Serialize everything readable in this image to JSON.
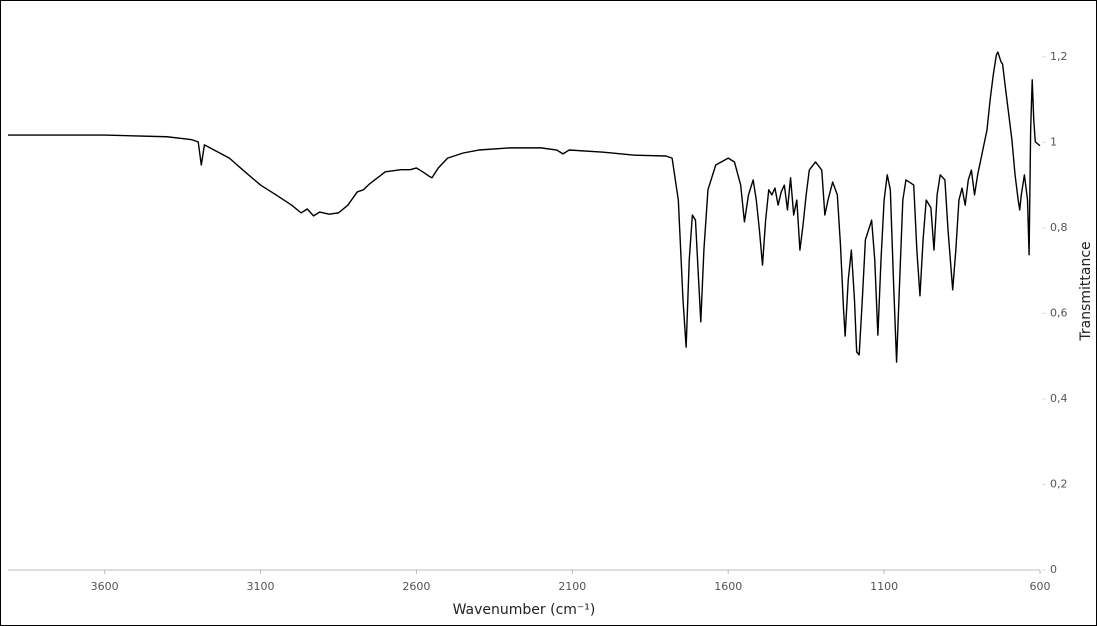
{
  "chart_data": {
    "type": "line",
    "x_label": "Wavenumber (cm⁻¹)",
    "y_label": "Transmittance",
    "color": "#000000",
    "x": [
      3910,
      3600,
      3400,
      3320,
      3300,
      3290,
      3280,
      3200,
      3150,
      3100,
      3050,
      3000,
      2970,
      2950,
      2930,
      2910,
      2880,
      2850,
      2820,
      2790,
      2770,
      2750,
      2700,
      2650,
      2620,
      2600,
      2580,
      2560,
      2550,
      2530,
      2500,
      2450,
      2400,
      2300,
      2200,
      2150,
      2130,
      2110,
      2000,
      1900,
      1800,
      1780,
      1760,
      1745,
      1735,
      1725,
      1715,
      1705,
      1695,
      1688,
      1678,
      1665,
      1640,
      1600,
      1580,
      1560,
      1548,
      1535,
      1520,
      1510,
      1500,
      1490,
      1480,
      1470,
      1460,
      1450,
      1440,
      1430,
      1420,
      1410,
      1400,
      1390,
      1380,
      1370,
      1360,
      1350,
      1340,
      1320,
      1300,
      1290,
      1280,
      1265,
      1250,
      1240,
      1230,
      1225,
      1215,
      1205,
      1195,
      1188,
      1180,
      1170,
      1160,
      1150,
      1140,
      1130,
      1120,
      1110,
      1100,
      1090,
      1080,
      1070,
      1060,
      1050,
      1040,
      1030,
      1015,
      1005,
      995,
      985,
      975,
      965,
      950,
      940,
      930,
      920,
      905,
      895,
      880,
      870,
      860,
      850,
      840,
      830,
      820,
      810,
      800,
      790,
      770,
      760,
      750,
      740,
      735,
      725,
      720,
      710,
      700,
      690,
      680,
      670,
      665,
      660,
      650,
      640,
      635,
      630,
      625,
      620,
      615,
      600
    ],
    "values": [
      1.017,
      1.017,
      1.013,
      1.006,
      1.001,
      0.947,
      0.994,
      0.963,
      0.931,
      0.9,
      0.877,
      0.853,
      0.835,
      0.844,
      0.828,
      0.837,
      0.832,
      0.835,
      0.853,
      0.884,
      0.889,
      0.903,
      0.931,
      0.936,
      0.936,
      0.94,
      0.931,
      0.921,
      0.917,
      0.94,
      0.963,
      0.975,
      0.982,
      0.987,
      0.987,
      0.982,
      0.973,
      0.982,
      0.977,
      0.97,
      0.968,
      0.963,
      0.865,
      0.631,
      0.521,
      0.725,
      0.83,
      0.818,
      0.678,
      0.58,
      0.748,
      0.889,
      0.947,
      0.963,
      0.954,
      0.9,
      0.814,
      0.877,
      0.912,
      0.865,
      0.795,
      0.713,
      0.818,
      0.889,
      0.877,
      0.893,
      0.853,
      0.884,
      0.9,
      0.842,
      0.917,
      0.83,
      0.865,
      0.748,
      0.807,
      0.877,
      0.935,
      0.954,
      0.935,
      0.83,
      0.865,
      0.907,
      0.877,
      0.76,
      0.608,
      0.547,
      0.678,
      0.748,
      0.631,
      0.51,
      0.503,
      0.631,
      0.772,
      0.795,
      0.818,
      0.725,
      0.549,
      0.725,
      0.865,
      0.924,
      0.889,
      0.678,
      0.486,
      0.678,
      0.865,
      0.912,
      0.905,
      0.9,
      0.748,
      0.641,
      0.772,
      0.865,
      0.847,
      0.748,
      0.877,
      0.924,
      0.912,
      0.795,
      0.655,
      0.748,
      0.865,
      0.893,
      0.853,
      0.912,
      0.935,
      0.877,
      0.924,
      0.959,
      1.029,
      1.099,
      1.157,
      1.204,
      1.211,
      1.188,
      1.183,
      1.122,
      1.064,
      1.005,
      0.924,
      0.865,
      0.842,
      0.877,
      0.924,
      0.865,
      0.737,
      1.029,
      1.146,
      1.052,
      1.001,
      0.992
    ],
    "xlim": [
      3910,
      600
    ],
    "ylim": [
      0,
      1.3
    ],
    "xticks": [
      3600,
      3100,
      2600,
      2100,
      1600,
      1100,
      600
    ],
    "yticks": [
      0,
      {
        "value": 0.2,
        "label": "0,2"
      },
      {
        "value": 0.4,
        "label": "0,4"
      },
      {
        "value": 0.6,
        "label": "0,6"
      },
      {
        "value": 0.8,
        "label": "0,8"
      },
      1,
      {
        "value": 1.2,
        "label": "1,2"
      }
    ]
  }
}
